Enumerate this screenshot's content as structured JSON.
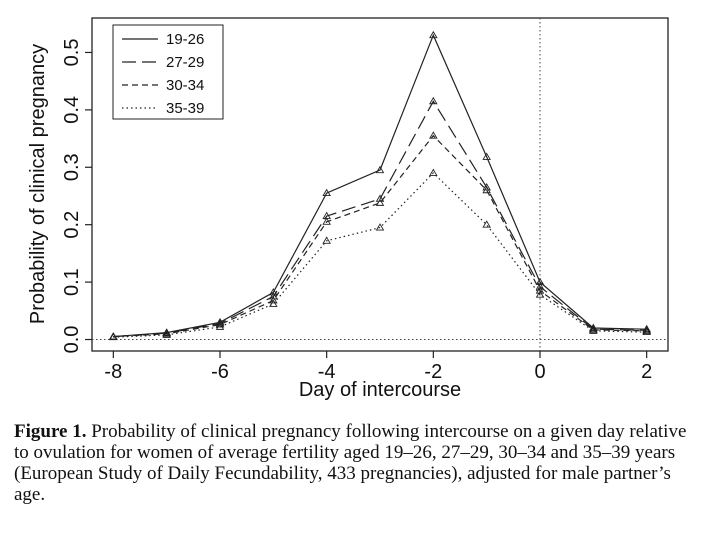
{
  "chart_data": {
    "type": "line",
    "xlabel": "Day of intercourse",
    "ylabel": "Probability of clinical pregnancy",
    "xlim": [
      -8.4,
      2.4
    ],
    "ylim": [
      -0.02,
      0.56
    ],
    "x_ticks": [
      -8,
      -6,
      -4,
      -2,
      0,
      2
    ],
    "x_tick_labels": [
      "-8",
      "-6",
      "-4",
      "-2",
      "0",
      "2"
    ],
    "y_ticks": [
      0.0,
      0.1,
      0.2,
      0.3,
      0.4,
      0.5
    ],
    "y_tick_labels": [
      "0.0",
      "0.1",
      "0.2",
      "0.3",
      "0.4",
      "0.5"
    ],
    "reference_lines": {
      "vertical_x": 0,
      "horizontal_y": 0
    },
    "legend_position": "top-left",
    "x": [
      -8,
      -7,
      -6,
      -5,
      -4,
      -3,
      -2,
      -1,
      0,
      1,
      2
    ],
    "series": [
      {
        "name": "19-26",
        "dash": "solid",
        "values": [
          0.005,
          0.012,
          0.03,
          0.082,
          0.255,
          0.295,
          0.53,
          0.318,
          0.1,
          0.02,
          0.018
        ]
      },
      {
        "name": "27-29",
        "dash": "long-dash",
        "values": [
          0.005,
          0.011,
          0.028,
          0.075,
          0.215,
          0.245,
          0.415,
          0.265,
          0.092,
          0.018,
          0.016
        ]
      },
      {
        "name": "30-34",
        "dash": "short-dash",
        "values": [
          0.005,
          0.01,
          0.026,
          0.068,
          0.205,
          0.238,
          0.355,
          0.26,
          0.085,
          0.017,
          0.015
        ]
      },
      {
        "name": "35-39",
        "dash": "dotted",
        "values": [
          0.004,
          0.008,
          0.022,
          0.062,
          0.172,
          0.195,
          0.29,
          0.2,
          0.078,
          0.015,
          0.013
        ]
      }
    ]
  },
  "caption": {
    "label": "Figure 1.",
    "text": "Probability of clinical pregnancy following intercourse on a given day relative to ovulation for women of average fertility aged 19–26, 27–29, 30–34 and 35–39 years (European Study of Daily Fecundability, 433 pregnancies), adjusted for male partner’s age."
  }
}
